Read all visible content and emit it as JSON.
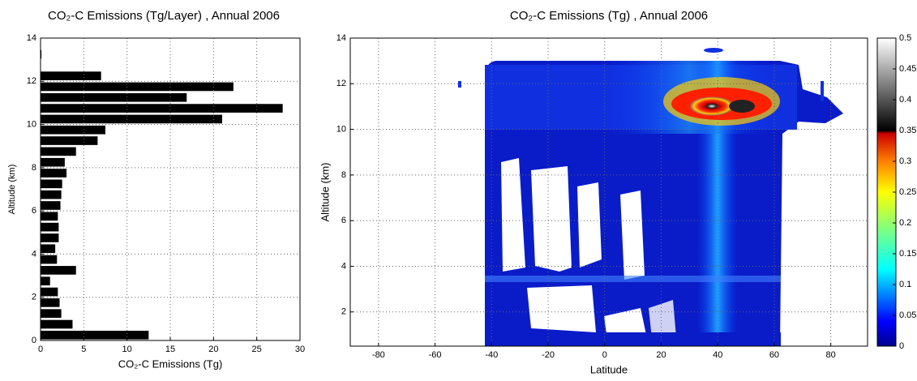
{
  "chart_data": [
    {
      "type": "barh",
      "title": "CO₂-C Emissions (Tg/Layer) , Annual 2006",
      "xlabel": "CO₂-C Emissions (Tg)",
      "ylabel": "Altitude (km)",
      "y": [
        0.25,
        0.75,
        1.25,
        1.75,
        2.25,
        2.75,
        3.25,
        3.75,
        4.25,
        4.75,
        5.25,
        5.75,
        6.25,
        6.75,
        7.25,
        7.75,
        8.25,
        8.75,
        9.25,
        9.75,
        10.25,
        10.75,
        11.25,
        11.75,
        12.25,
        13.25
      ],
      "values": [
        12.5,
        3.7,
        2.4,
        2.2,
        2.0,
        1.1,
        4.1,
        1.9,
        1.7,
        2.1,
        2.1,
        2.0,
        2.3,
        2.4,
        2.5,
        3.0,
        2.8,
        4.1,
        6.6,
        7.5,
        21.0,
        28.0,
        16.9,
        22.3,
        7.0,
        0.1
      ],
      "color": "#000000",
      "xlim": [
        0,
        30
      ],
      "ylim": [
        0,
        14
      ],
      "xticks": [
        0,
        5,
        10,
        15,
        20,
        25,
        30
      ],
      "yticks": [
        0,
        2,
        4,
        6,
        8,
        10,
        12,
        14
      ],
      "grid": true
    },
    {
      "type": "heatmap",
      "title": "CO₂-C Emissions (Tg) , Annual 2006",
      "xlabel": "Latitude",
      "ylabel": "Altitude (km)",
      "xlim": [
        -90,
        93
      ],
      "ylim": [
        0.5,
        14
      ],
      "xticks": [
        -80,
        -60,
        -40,
        -20,
        0,
        20,
        40,
        60,
        80
      ],
      "yticks": [
        2,
        4,
        6,
        8,
        10,
        12,
        14
      ],
      "grid": true,
      "clim": [
        0,
        0.5
      ],
      "cticks": [
        0,
        0.05,
        0.1,
        0.15,
        0.2,
        0.25,
        0.3,
        0.35,
        0.4,
        0.45,
        0.5
      ]
    }
  ]
}
